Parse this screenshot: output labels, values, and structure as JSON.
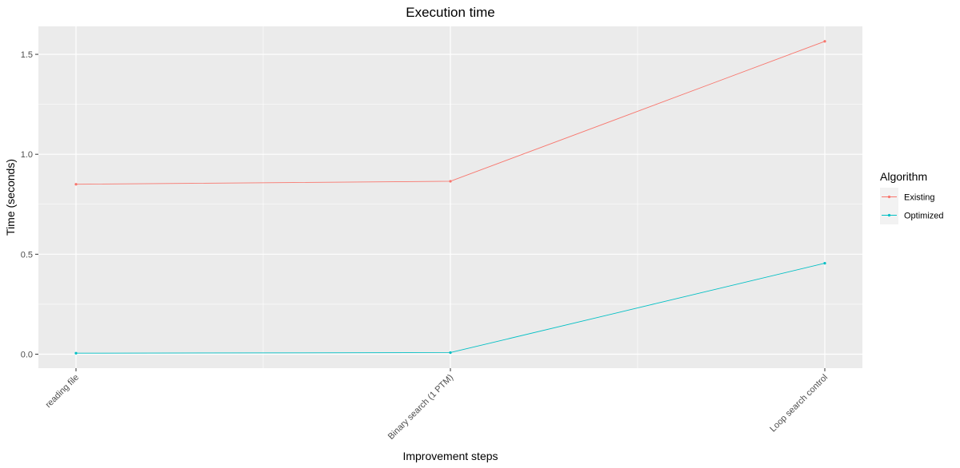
{
  "chart_data": {
    "type": "line",
    "title": "Execution time",
    "xlabel": "Improvement steps",
    "ylabel": "Time (seconds)",
    "categories": [
      "reading file",
      "Binary search (1 PTM)",
      "Loop search control"
    ],
    "ylim": [
      -0.07,
      1.64
    ],
    "yticks": [
      0.0,
      0.5,
      1.0,
      1.5
    ],
    "ytick_labels": [
      "0.0",
      "0.5",
      "1.0",
      "1.5"
    ],
    "grid": true,
    "legend": {
      "title": "Algorithm",
      "position": "right"
    },
    "series": [
      {
        "name": "Existing",
        "color": "#F8766D",
        "values": [
          0.85,
          0.865,
          1.565
        ]
      },
      {
        "name": "Optimized",
        "color": "#00BFC4",
        "values": [
          0.005,
          0.008,
          0.455
        ]
      }
    ]
  }
}
